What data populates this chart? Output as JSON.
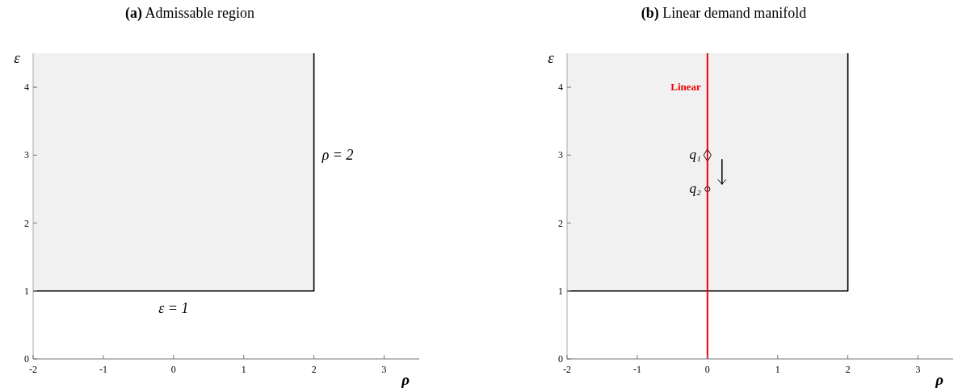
{
  "chart_data": [
    {
      "type": "line",
      "title": "(a) Admissable region",
      "xlabel": "ρ",
      "ylabel": "ε",
      "xlim": [
        -2,
        3.5
      ],
      "ylim": [
        0,
        4.5
      ],
      "xticks": [
        -2,
        -1,
        0,
        1,
        2,
        3
      ],
      "yticks": [
        0,
        1,
        2,
        3,
        4
      ],
      "grid": false,
      "series": [
        {
          "color": "#000000",
          "x": [
            -2,
            2,
            2
          ],
          "values": [
            1,
            1,
            4.5
          ],
          "lower": [
            1,
            1,
            1
          ],
          "upper": [
            4.5,
            4.5,
            4.5
          ]
        }
      ],
      "annotations": [
        "ρ = 2",
        "ε = 1"
      ]
    },
    {
      "type": "line",
      "title": "(b) Linear demand manifold",
      "xlabel": "ρ",
      "ylabel": "ε",
      "xlim": [
        -2,
        3.5
      ],
      "ylim": [
        0,
        4.5
      ],
      "xticks": [
        -2,
        -1,
        0,
        1,
        2,
        3
      ],
      "yticks": [
        0,
        1,
        2,
        3,
        4
      ],
      "grid": false,
      "series": [
        {
          "color": "#000000",
          "x": [
            -2,
            2,
            2
          ],
          "values": [
            1,
            1,
            4.5
          ],
          "lower": [
            1,
            1,
            1
          ],
          "upper": [
            4.5,
            4.5,
            4.5
          ]
        },
        {
          "type": "scatter",
          "name": "q₁",
          "color": "#ffffff",
          "marker": "diamond",
          "x": [
            0
          ],
          "values": [
            3
          ]
        },
        {
          "type": "scatter",
          "name": "q₂",
          "color": "#ffffff",
          "marker": "circle",
          "x": [
            0
          ],
          "values": [
            2.5
          ]
        }
      ],
      "ref_lines": [
        {
          "axis": "x",
          "value": 0,
          "label": "Linear",
          "color": "#ee0000"
        }
      ]
    }
  ]
}
